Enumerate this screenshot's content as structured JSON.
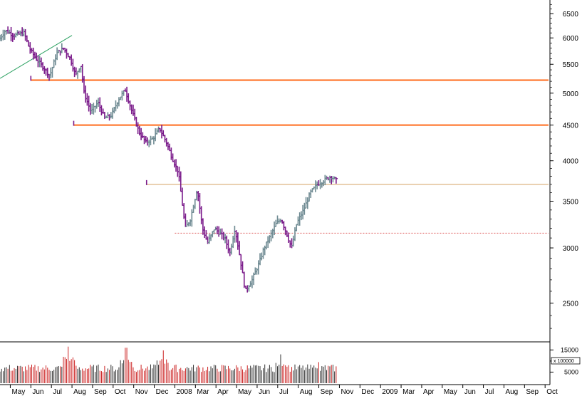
{
  "chart_data": {
    "type": "ohlc",
    "title": "",
    "xlabel": "",
    "ylabel": "",
    "y_scale": "log",
    "ylim": [
      2200,
      6800
    ],
    "y_ticks": [
      2500,
      3000,
      3500,
      4000,
      4500,
      5000,
      5500,
      6000,
      6500
    ],
    "grid": false,
    "legend": "none",
    "x_labels": [
      "May",
      "Jun",
      "Jul",
      "Aug",
      "Sep",
      "Oct",
      "Nov",
      "Dec",
      "2008",
      "Mar",
      "Apr",
      "May",
      "Jun",
      "Jul",
      "Aug",
      "Sep",
      "Nov",
      "Dec",
      "2009",
      "Mar",
      "Apr",
      "May",
      "Jun",
      "Jul",
      "Aug",
      "Sep",
      "Oct"
    ],
    "x_label_positions": [
      12,
      36,
      60,
      84,
      108,
      132,
      156,
      180,
      204,
      228,
      252,
      276,
      300,
      324,
      348,
      372,
      396,
      420,
      444,
      468,
      492,
      516,
      540,
      564,
      588,
      612,
      636
    ],
    "x_range": [
      0,
      640
    ],
    "colors": {
      "up": "#6e8a92",
      "down": "#7a1a8a",
      "support_line": "#ff6a1a",
      "trend_line": "#2aa060",
      "resistance_line": "#d4a060",
      "dotted_line": "#e06060",
      "volume_up": "#333333",
      "volume_down": "#cc2222"
    },
    "keypoints": [
      [
        0,
        5950
      ],
      [
        8,
        6150
      ],
      [
        18,
        6050
      ],
      [
        30,
        6100
      ],
      [
        36,
        5800
      ],
      [
        44,
        5600
      ],
      [
        52,
        5450
      ],
      [
        60,
        5300
      ],
      [
        68,
        5700
      ],
      [
        76,
        5800
      ],
      [
        84,
        5600
      ],
      [
        90,
        5300
      ],
      [
        96,
        5500
      ],
      [
        100,
        5000
      ],
      [
        108,
        4700
      ],
      [
        116,
        4850
      ],
      [
        124,
        4600
      ],
      [
        132,
        4650
      ],
      [
        140,
        4900
      ],
      [
        148,
        5050
      ],
      [
        156,
        4700
      ],
      [
        164,
        4400
      ],
      [
        172,
        4250
      ],
      [
        180,
        4300
      ],
      [
        188,
        4450
      ],
      [
        196,
        4250
      ],
      [
        204,
        4000
      ],
      [
        210,
        3850
      ],
      [
        218,
        3200
      ],
      [
        224,
        3300
      ],
      [
        232,
        3650
      ],
      [
        238,
        3200
      ],
      [
        244,
        3050
      ],
      [
        252,
        3200
      ],
      [
        258,
        3150
      ],
      [
        264,
        3100
      ],
      [
        270,
        2950
      ],
      [
        276,
        3200
      ],
      [
        282,
        2900
      ],
      [
        288,
        2600
      ],
      [
        296,
        2700
      ],
      [
        304,
        2850
      ],
      [
        310,
        3000
      ],
      [
        316,
        3100
      ],
      [
        324,
        3250
      ],
      [
        330,
        3300
      ],
      [
        336,
        3150
      ],
      [
        342,
        3000
      ],
      [
        348,
        3250
      ],
      [
        356,
        3400
      ],
      [
        364,
        3600
      ],
      [
        372,
        3700
      ],
      [
        380,
        3750
      ],
      [
        388,
        3800
      ],
      [
        394,
        3750
      ]
    ],
    "volume": {
      "ylim": [
        0,
        18000
      ],
      "y_ticks": [
        5000,
        10000,
        15000
      ],
      "y_unit": "x 100000",
      "spikes": [
        [
          80,
          16500
        ],
        [
          147,
          16000
        ],
        [
          190,
          14800
        ],
        [
          328,
          13000
        ],
        [
          372,
          9500
        ]
      ],
      "baseline_range": [
        5000,
        8500
      ]
    },
    "reference_lines": [
      {
        "name": "support-2008-high",
        "value": 5220,
        "x_start": 36,
        "x_end": 640,
        "style": "solid"
      },
      {
        "name": "support-2008-low",
        "value": 4500,
        "x_start": 86,
        "x_end": 640,
        "style": "solid"
      },
      {
        "name": "resistance-2009",
        "value": 3700,
        "x_start": 171,
        "x_end": 640,
        "style": "solid"
      },
      {
        "name": "support-dotted-2009",
        "value": 3150,
        "x_start": 204,
        "x_end": 640,
        "style": "dotted"
      }
    ],
    "trend_lines": [
      {
        "name": "uptrend-line",
        "x_start": 0,
        "value_start": 5250,
        "x_end": 84,
        "value_end": 6050
      }
    ]
  }
}
